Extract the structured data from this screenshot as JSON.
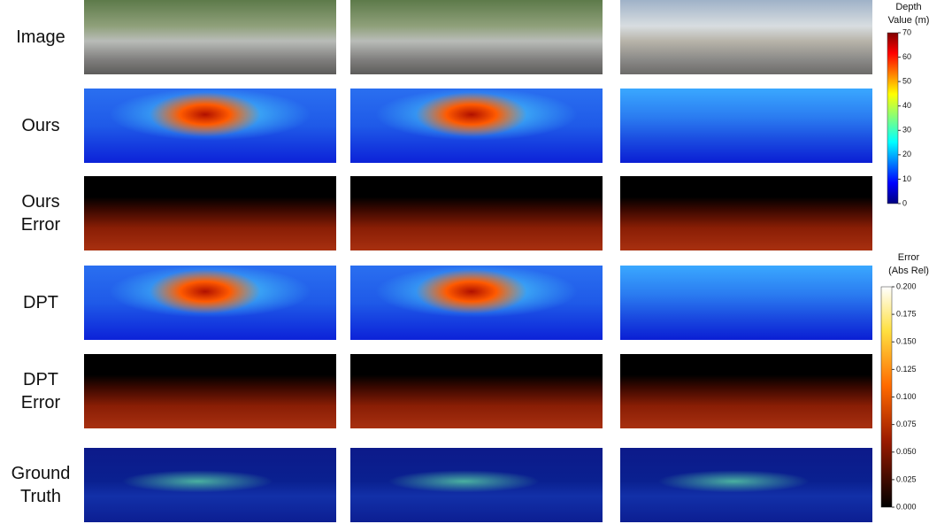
{
  "rows": [
    {
      "label": [
        "Image"
      ]
    },
    {
      "label": [
        "Ours"
      ]
    },
    {
      "label": [
        "Ours",
        "Error"
      ]
    },
    {
      "label": [
        "DPT"
      ]
    },
    {
      "label": [
        "DPT",
        "Error"
      ]
    },
    {
      "label": [
        "Ground",
        "Truth"
      ]
    }
  ],
  "depth_colorbar": {
    "title": [
      "Depth",
      "Value (m)"
    ],
    "lim": [
      0,
      70
    ],
    "ticks": [
      0,
      10,
      20,
      30,
      40,
      50,
      60,
      70
    ]
  },
  "error_colorbar": {
    "title": [
      "Error",
      "(Abs Rel)"
    ],
    "lim": [
      0,
      0.2
    ],
    "ticks": [
      {
        "value": 0,
        "label": "0.000"
      },
      {
        "value": 0.025,
        "label": "0.025"
      },
      {
        "value": 0.05,
        "label": "0.050"
      },
      {
        "value": 0.075,
        "label": "0.075"
      },
      {
        "value": 0.1,
        "label": "0.100"
      },
      {
        "value": 0.125,
        "label": "0.125"
      },
      {
        "value": 0.15,
        "label": "0.150"
      },
      {
        "value": 0.175,
        "label": "0.175"
      },
      {
        "value": 0.2,
        "label": "0.200"
      }
    ]
  }
}
